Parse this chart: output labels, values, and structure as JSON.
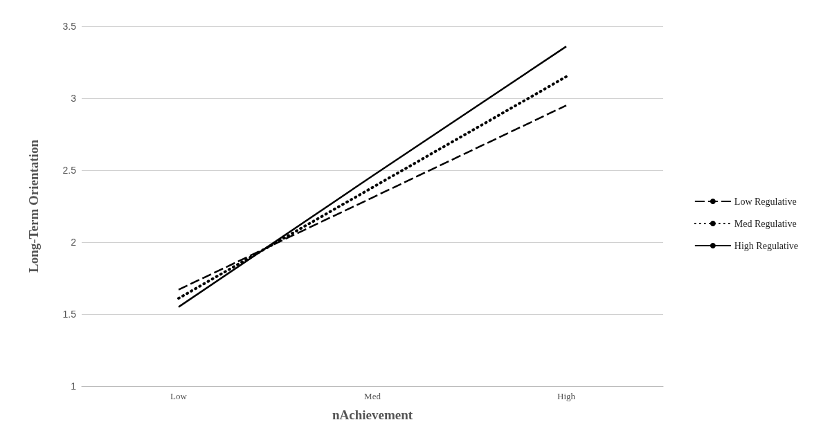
{
  "chart_data": {
    "type": "line",
    "xlabel": "nAchievement",
    "ylabel": "Long-Term Orientation",
    "categories": [
      "Low",
      "Med",
      "High"
    ],
    "series": [
      {
        "name": "Low Regulative",
        "color": "#000000",
        "line_style": "dashed",
        "values": [
          1.67,
          2.31,
          2.95
        ]
      },
      {
        "name": "Med Regulative",
        "color": "#000000",
        "line_style": "dotted",
        "values": [
          1.61,
          2.38,
          3.15
        ]
      },
      {
        "name": "High Regulative",
        "color": "#000000",
        "line_style": "solid",
        "values": [
          1.55,
          2.46,
          3.36
        ]
      }
    ],
    "ylim": [
      1,
      3.5
    ],
    "yticks": [
      1,
      1.5,
      2,
      2.5,
      3,
      3.5
    ],
    "grid": "y",
    "legend": "right",
    "marker": "none"
  }
}
